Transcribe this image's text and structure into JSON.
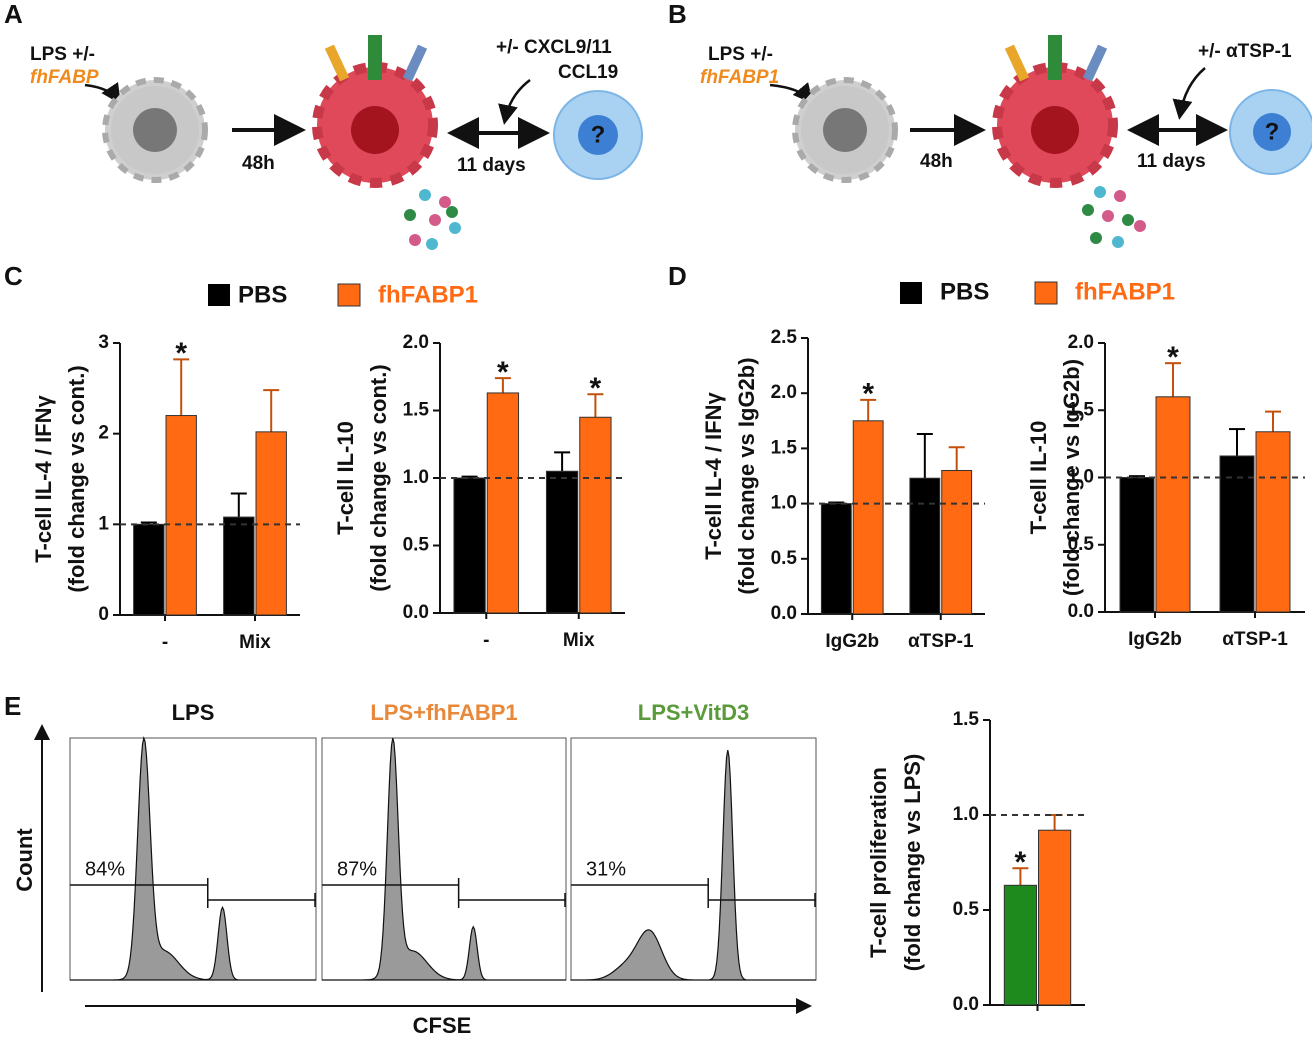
{
  "panel_labels": [
    "A",
    "B",
    "C",
    "D",
    "E"
  ],
  "diagram_a": {
    "stimulus": "LPS +/-",
    "agent": "fhFABP",
    "time1": "48h",
    "time2": "11 days",
    "treatment": "+/- CXCL9/11",
    "treatment2": "CCL19",
    "unknown": "?"
  },
  "diagram_b": {
    "stimulus": "LPS +/-",
    "agent": "fhFABP1",
    "time1": "48h",
    "time2": "11 days",
    "treatment": "+/- αTSP-1",
    "unknown": "?"
  },
  "chart_data": [
    {
      "type": "bar",
      "ylabel": [
        "T-cell IL-4 / IFNγ",
        "(fold change vs cont.)"
      ],
      "categories": [
        "-",
        "Mix"
      ],
      "series": [
        {
          "name": "PBS",
          "color": "#000000",
          "values": [
            1.0,
            1.08
          ],
          "errors": [
            0.02,
            0.26
          ],
          "markers": [
            null,
            null
          ]
        },
        {
          "name": "fhFABP1",
          "color": "#ff6a13",
          "values": [
            2.2,
            2.02
          ],
          "errors": [
            0.62,
            0.46
          ],
          "markers": [
            "*",
            null
          ]
        }
      ],
      "ylim": [
        0,
        3
      ],
      "yticks": [
        0,
        1,
        2,
        3
      ],
      "reference_line": 1
    },
    {
      "type": "bar",
      "ylabel": [
        "T-cell IL-10",
        "(fold change vs cont.)"
      ],
      "categories": [
        "-",
        "Mix"
      ],
      "series": [
        {
          "name": "PBS",
          "color": "#000000",
          "values": [
            1.0,
            1.05
          ],
          "errors": [
            0.01,
            0.14
          ],
          "markers": [
            null,
            null
          ]
        },
        {
          "name": "fhFABP1",
          "color": "#ff6a13",
          "values": [
            1.63,
            1.45
          ],
          "errors": [
            0.11,
            0.17
          ],
          "markers": [
            "*",
            "*"
          ]
        }
      ],
      "ylim": [
        0,
        2
      ],
      "yticks": [
        {
          "value": 0,
          "label": "0.0"
        },
        0.5,
        {
          "value": 1,
          "label": "1.0"
        },
        1.5,
        {
          "value": 2,
          "label": "2.0"
        }
      ],
      "reference_line": 1
    },
    {
      "type": "bar",
      "ylabel": [
        "T-cell IL-4 / IFNγ",
        "(fold change vs IgG2b)"
      ],
      "categories": [
        "IgG2b",
        "αTSP-1"
      ],
      "series": [
        {
          "name": "PBS",
          "color": "#000000",
          "values": [
            1.0,
            1.23
          ],
          "errors": [
            0.01,
            0.4
          ],
          "markers": [
            null,
            null
          ]
        },
        {
          "name": "fhFABP1",
          "color": "#ff6a13",
          "values": [
            1.75,
            1.3
          ],
          "errors": [
            0.19,
            0.21
          ],
          "markers": [
            "*",
            null
          ]
        }
      ],
      "ylim": [
        0,
        2.5
      ],
      "yticks": [
        {
          "value": 0,
          "label": "0.0"
        },
        0.5,
        {
          "value": 1,
          "label": "1.0"
        },
        1.5,
        {
          "value": 2,
          "label": "2.0"
        },
        2.5
      ],
      "reference_line": 1
    },
    {
      "type": "bar",
      "ylabel": [
        "T-cell IL-10",
        "(fold change vs IgG2b)"
      ],
      "categories": [
        "IgG2b",
        "αTSP-1"
      ],
      "series": [
        {
          "name": "PBS",
          "color": "#000000",
          "values": [
            1.0,
            1.16
          ],
          "errors": [
            0.01,
            0.2
          ],
          "markers": [
            null,
            null
          ]
        },
        {
          "name": "fhFABP1",
          "color": "#ff6a13",
          "values": [
            1.6,
            1.34
          ],
          "errors": [
            0.25,
            0.15
          ],
          "markers": [
            "*",
            null
          ]
        }
      ],
      "ylim": [
        0,
        2
      ],
      "yticks": [
        {
          "value": 0,
          "label": "0.0"
        },
        0.5,
        {
          "value": 1,
          "label": "1.0"
        },
        1.5,
        {
          "value": 2,
          "label": "2.0"
        }
      ],
      "reference_line": 1
    },
    {
      "type": "bar",
      "ylabel": [
        "T-cell proliferation",
        "(fold change vs LPS)"
      ],
      "categories": [
        null
      ],
      "series": [
        {
          "color": "#1e8a1e",
          "values": [
            0.63
          ],
          "errors": [
            0.09
          ],
          "markers": [
            "*"
          ]
        },
        {
          "color": "#ff6a13",
          "values": [
            0.92
          ],
          "errors": [
            0.08
          ],
          "markers": [
            null
          ]
        }
      ],
      "ylim": [
        0,
        1.5
      ],
      "yticks": [
        {
          "value": 0,
          "label": "0.0"
        },
        0.5,
        {
          "value": 1,
          "label": "1.0"
        },
        1.5
      ],
      "reference_line": 1
    }
  ],
  "histograms": {
    "ylabel": "Count",
    "xlabel": "CFSE",
    "panels": [
      {
        "title": "LPS",
        "color": "#111111",
        "percent": "84%"
      },
      {
        "title": "LPS+fhFABP1",
        "color": "#e8883a",
        "percent": "87%"
      },
      {
        "title": "LPS+VitD3",
        "color": "#5a9a3a",
        "percent": "31%"
      }
    ]
  }
}
